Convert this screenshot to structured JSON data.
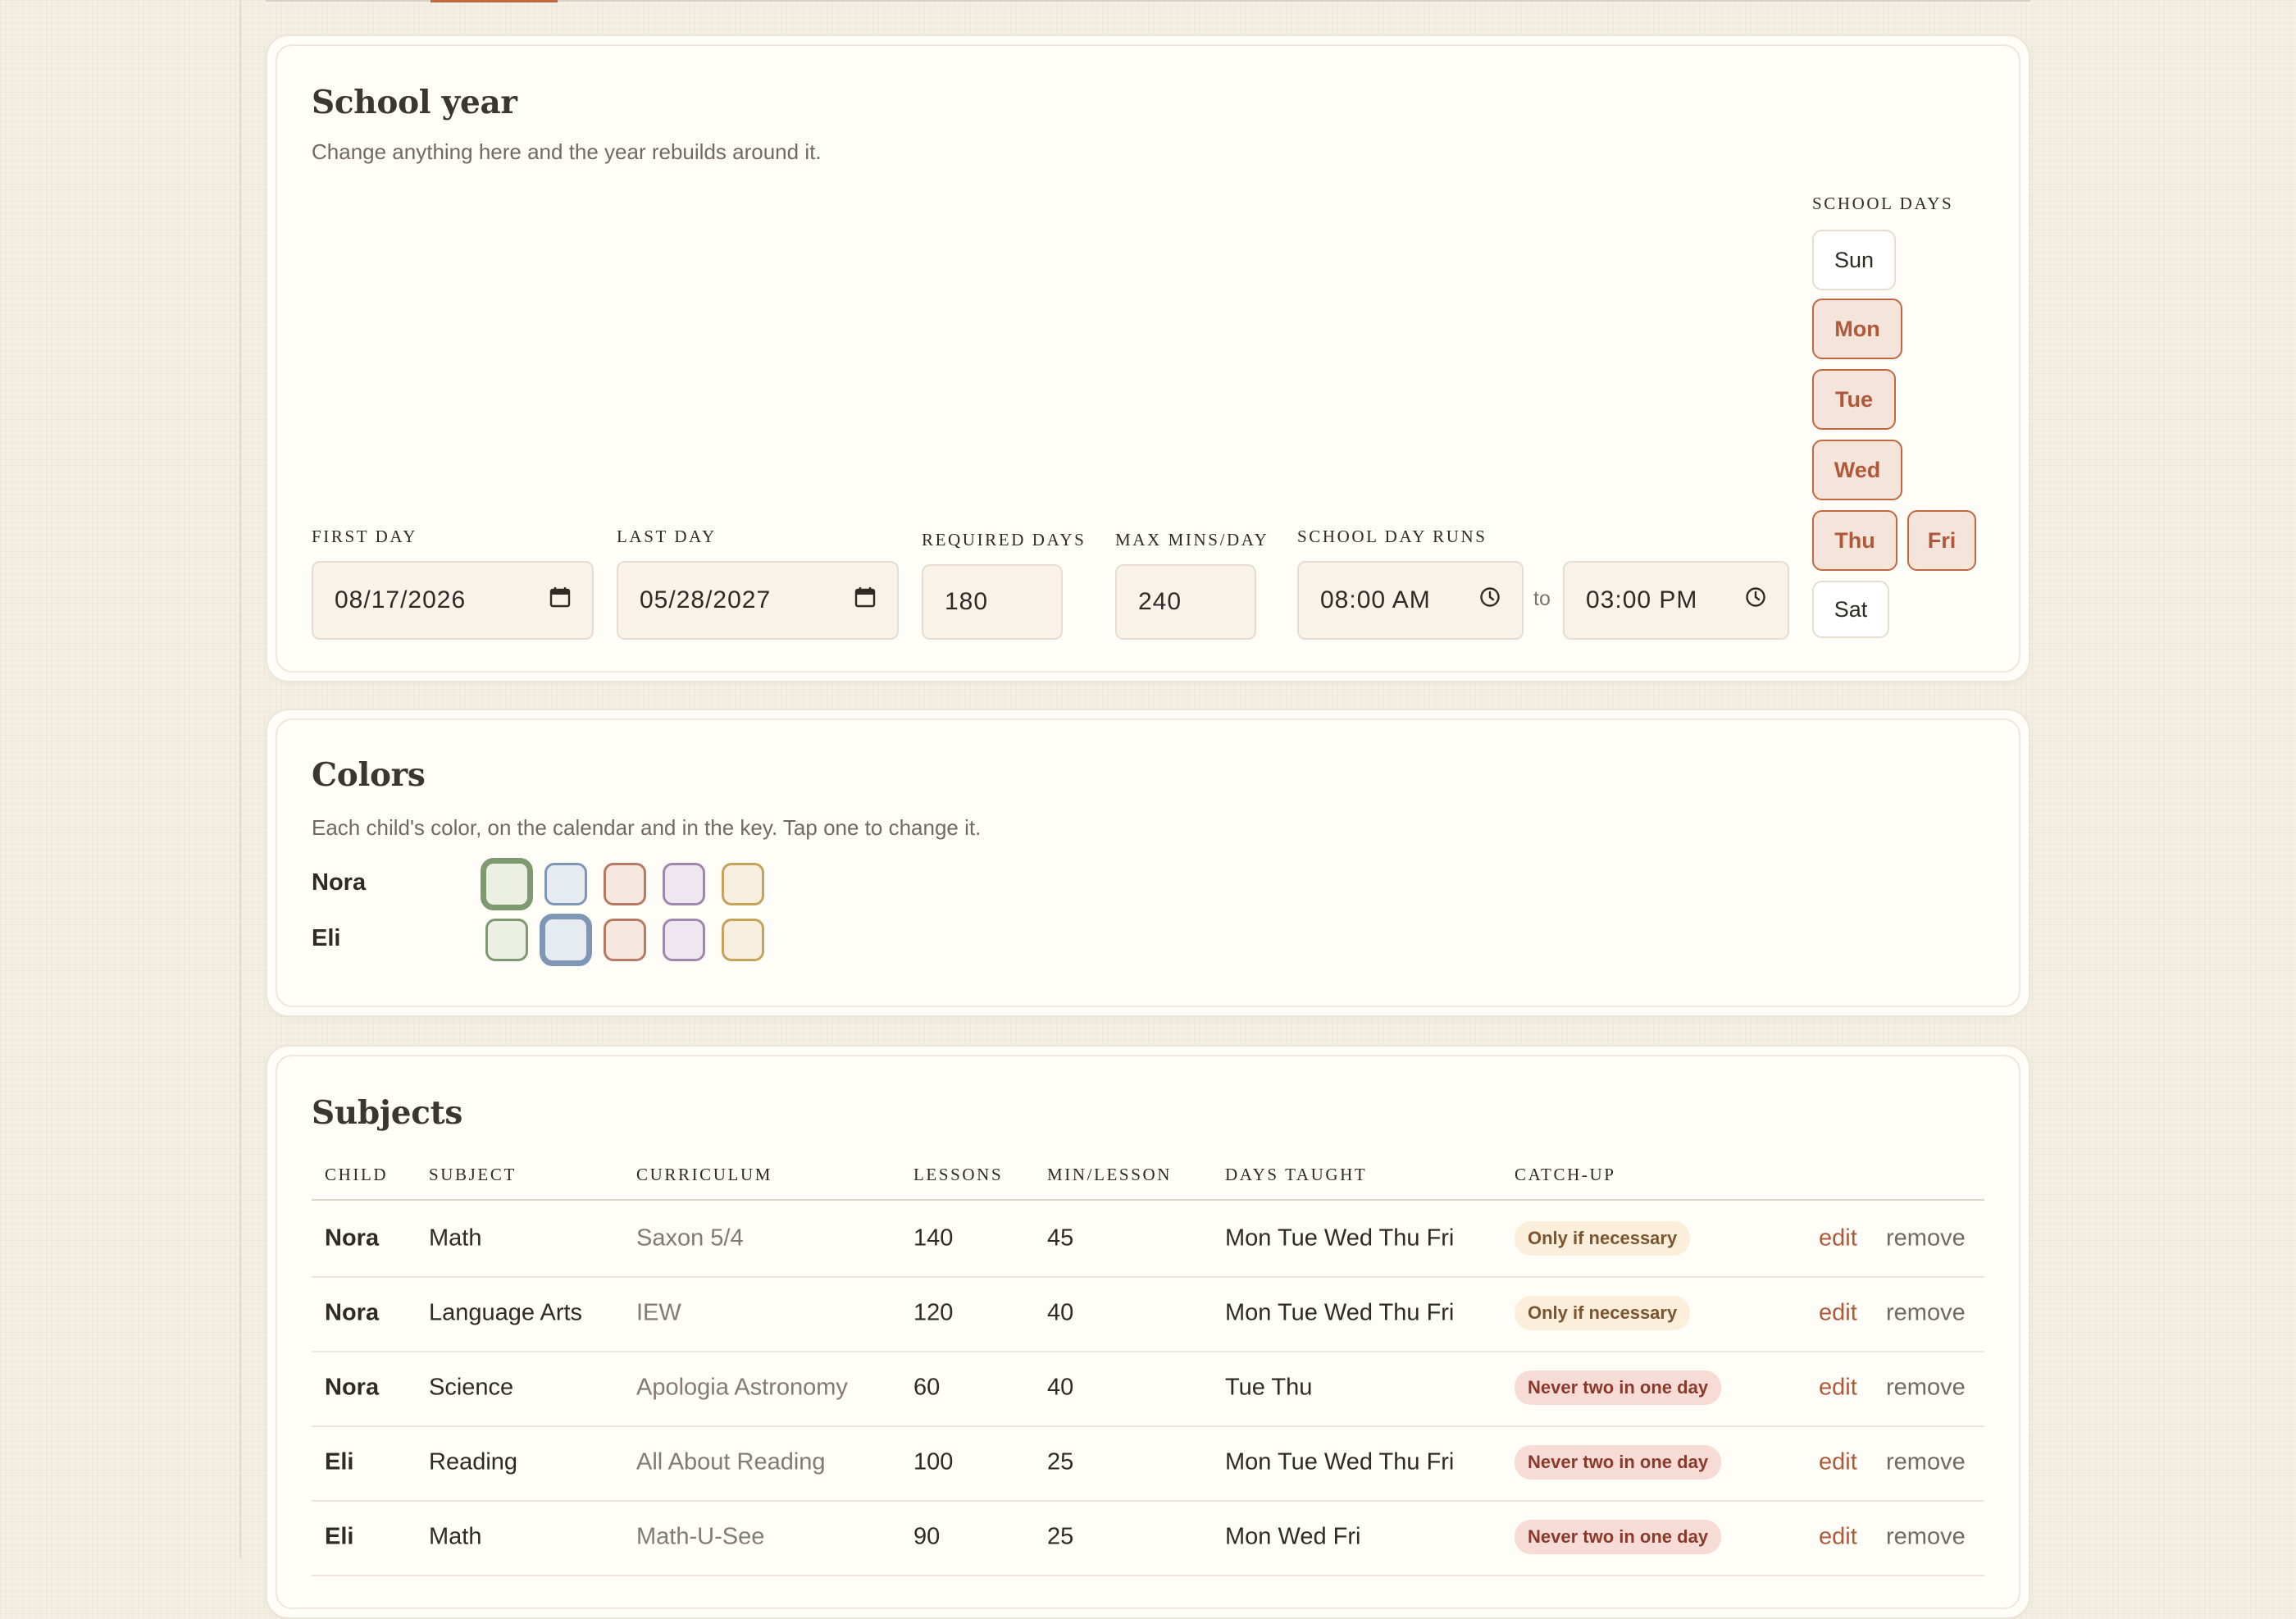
{
  "school_year": {
    "title": "School year",
    "subtitle": "Change anything here and the year rebuilds around it.",
    "first_day": {
      "label": "FIRST DAY",
      "value": "08/17/2026"
    },
    "last_day": {
      "label": "LAST DAY",
      "value": "05/28/2027"
    },
    "required_days": {
      "label": "REQUIRED DAYS",
      "value": "180"
    },
    "max_mins": {
      "label": "MAX MINS/DAY",
      "value": "240"
    },
    "day_runs": {
      "label": "SCHOOL DAY RUNS",
      "start": "08:00 AM",
      "separator": "to",
      "end": "03:00 PM"
    },
    "school_days": {
      "label": "SCHOOL DAYS",
      "days": [
        {
          "label": "Sun",
          "selected": false
        },
        {
          "label": "Mon",
          "selected": true
        },
        {
          "label": "Tue",
          "selected": true
        },
        {
          "label": "Wed",
          "selected": true
        },
        {
          "label": "Thu",
          "selected": true
        },
        {
          "label": "Fri",
          "selected": true
        },
        {
          "label": "Sat",
          "selected": false
        }
      ]
    }
  },
  "colors": {
    "title": "Colors",
    "subtitle": "Each child's color, on the calendar and in the key. Tap one to change it.",
    "palette": [
      {
        "name": "sage",
        "border": "#7f9a70",
        "fill": "#ebefe4"
      },
      {
        "name": "blue",
        "border": "#7f97b5",
        "fill": "#e6ebf1"
      },
      {
        "name": "terracotta",
        "border": "#b87a62",
        "fill": "#f6e8e1"
      },
      {
        "name": "lavender",
        "border": "#a187aa",
        "fill": "#efe6f0"
      },
      {
        "name": "mustard",
        "border": "#c6a25a",
        "fill": "#f6eedf"
      }
    ],
    "children": [
      {
        "name": "Nora",
        "selected_index": 0
      },
      {
        "name": "Eli",
        "selected_index": 1
      }
    ]
  },
  "subjects": {
    "title": "Subjects",
    "columns": [
      "CHILD",
      "SUBJECT",
      "CURRICULUM",
      "LESSONS",
      "MIN/LESSON",
      "DAYS TAUGHT",
      "CATCH-UP"
    ],
    "edit_label": "edit",
    "remove_label": "remove",
    "rows": [
      {
        "child": "Nora",
        "subject": "Math",
        "curriculum": "Saxon 5/4",
        "lessons": "140",
        "min_lesson": "45",
        "days": "Mon Tue Wed Thu Fri",
        "catchup": "Only if necessary",
        "catchup_style": "soft"
      },
      {
        "child": "Nora",
        "subject": "Language Arts",
        "curriculum": "IEW",
        "lessons": "120",
        "min_lesson": "40",
        "days": "Mon Tue Wed Thu Fri",
        "catchup": "Only if necessary",
        "catchup_style": "soft"
      },
      {
        "child": "Nora",
        "subject": "Science",
        "curriculum": "Apologia Astronomy",
        "lessons": "60",
        "min_lesson": "40",
        "days": "Tue Thu",
        "catchup": "Never two in one day",
        "catchup_style": "strict"
      },
      {
        "child": "Eli",
        "subject": "Reading",
        "curriculum": "All About Reading",
        "lessons": "100",
        "min_lesson": "25",
        "days": "Mon Tue Wed Thu Fri",
        "catchup": "Never two in one day",
        "catchup_style": "strict"
      },
      {
        "child": "Eli",
        "subject": "Math",
        "curriculum": "Math-U-See",
        "lessons": "90",
        "min_lesson": "25",
        "days": "Mon Wed Fri",
        "catchup": "Never two in one day",
        "catchup_style": "strict"
      }
    ]
  }
}
